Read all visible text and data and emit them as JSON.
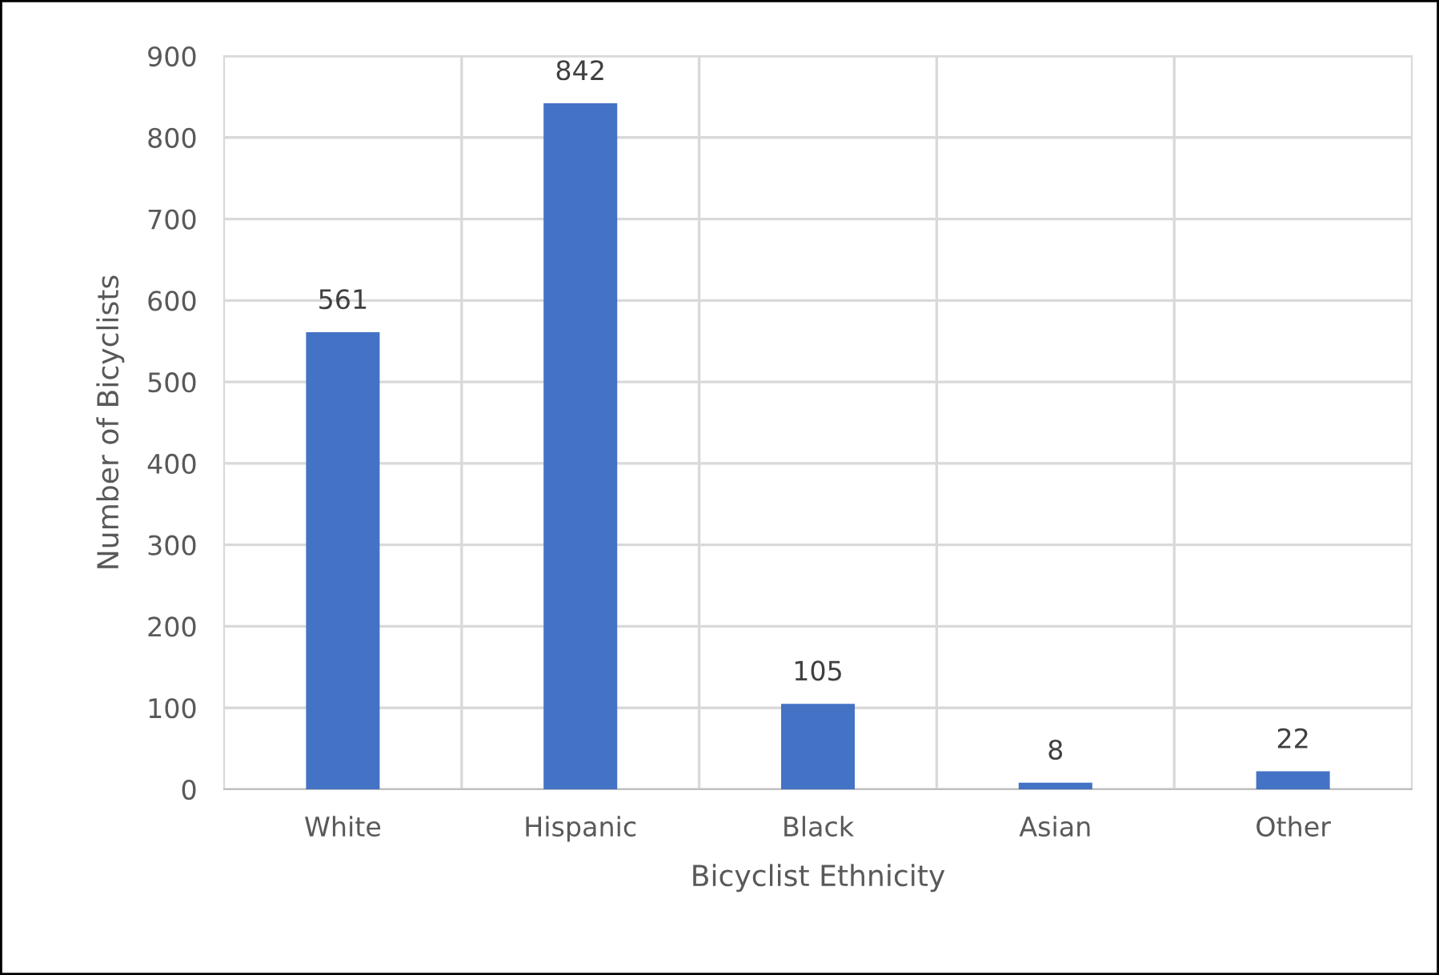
{
  "chart_data": {
    "type": "bar",
    "xlabel": "Bicyclist Ethnicity",
    "ylabel": "Number of Bicyclists",
    "categories": [
      "White",
      "Hispanic",
      "Black",
      "Asian",
      "Other"
    ],
    "values": [
      561,
      842,
      105,
      8,
      22
    ],
    "color": "#4472c4",
    "ylim": [
      0,
      900
    ],
    "yticks": [
      0,
      100,
      200,
      300,
      400,
      500,
      600,
      700,
      800,
      900
    ],
    "grid": true,
    "data_labels": true
  }
}
